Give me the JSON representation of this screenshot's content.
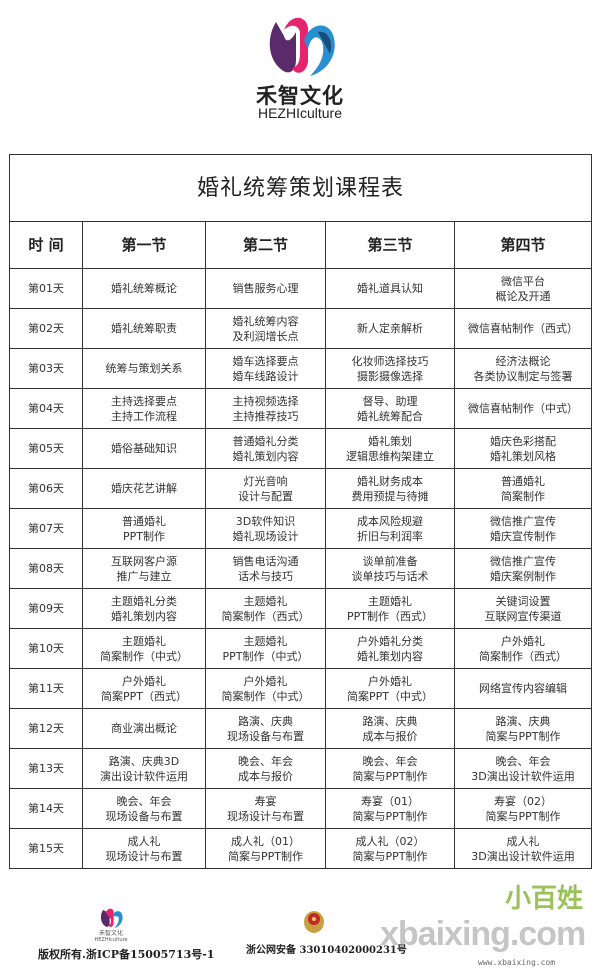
{
  "brand": {
    "name_cn": "禾智文化",
    "name_en": "HEZHIculture",
    "logo_colors": [
      "#e8236e",
      "#2a8fd0",
      "#5a2a6a"
    ]
  },
  "table": {
    "title": "婚礼统筹策划课程表",
    "headers": [
      "时 间",
      "第一节",
      "第二节",
      "第三节",
      "第四节"
    ],
    "rows": [
      {
        "day": "第01天",
        "cells": [
          [
            "婚礼统筹概论"
          ],
          [
            "销售服务心理"
          ],
          [
            "婚礼道具认知"
          ],
          [
            "微信平台",
            "概论及开通"
          ]
        ]
      },
      {
        "day": "第02天",
        "cells": [
          [
            "婚礼统筹职责"
          ],
          [
            "婚礼统筹内容",
            "及利润增长点"
          ],
          [
            "新人定亲解析"
          ],
          [
            "微信喜帖制作（西式）"
          ]
        ]
      },
      {
        "day": "第03天",
        "cells": [
          [
            "统筹与策划关系"
          ],
          [
            "婚车选择要点",
            "婚车线路设计"
          ],
          [
            "化妆师选择技巧",
            "摄影摄像选择"
          ],
          [
            "经济法概论",
            "各类协议制定与签署"
          ]
        ]
      },
      {
        "day": "第04天",
        "cells": [
          [
            "主持选择要点",
            "主持工作流程"
          ],
          [
            "主持视频选择",
            "主持推荐技巧"
          ],
          [
            "督导、助理",
            "婚礼统筹配合"
          ],
          [
            "微信喜帖制作（中式）"
          ]
        ]
      },
      {
        "day": "第05天",
        "cells": [
          [
            "婚俗基础知识"
          ],
          [
            "普通婚礼分类",
            "婚礼策划内容"
          ],
          [
            "婚礼策划",
            "逻辑思维构架建立"
          ],
          [
            "婚庆色彩搭配",
            "婚礼策划风格"
          ]
        ]
      },
      {
        "day": "第06天",
        "cells": [
          [
            "婚庆花艺讲解"
          ],
          [
            "灯光音响",
            "设计与配置"
          ],
          [
            "婚礼财务成本",
            "费用预提与待摊"
          ],
          [
            "普通婚礼",
            "简案制作"
          ]
        ]
      },
      {
        "day": "第07天",
        "cells": [
          [
            "普通婚礼",
            "PPT制作"
          ],
          [
            "3D软件知识",
            "婚礼现场设计"
          ],
          [
            "成本风险规避",
            "折旧与利润率"
          ],
          [
            "微信推广宣传",
            "婚庆宣传制作"
          ]
        ]
      },
      {
        "day": "第08天",
        "cells": [
          [
            "互联网客户源",
            "推广与建立"
          ],
          [
            "销售电话沟通",
            "话术与技巧"
          ],
          [
            "谈单前准备",
            "谈单技巧与话术"
          ],
          [
            "微信推广宣传",
            "婚庆案例制作"
          ]
        ]
      },
      {
        "day": "第09天",
        "cells": [
          [
            "主题婚礼分类",
            "婚礼策划内容"
          ],
          [
            "主题婚礼",
            "简案制作（西式）"
          ],
          [
            "主题婚礼",
            "PPT制作（西式）"
          ],
          [
            "关键词设置",
            "互联网宣传渠道"
          ]
        ]
      },
      {
        "day": "第10天",
        "cells": [
          [
            "主题婚礼",
            "简案制作（中式）"
          ],
          [
            "主题婚礼",
            "PPT制作（中式）"
          ],
          [
            "户外婚礼分类",
            "婚礼策划内容"
          ],
          [
            "户外婚礼",
            "简案制作（西式）"
          ]
        ]
      },
      {
        "day": "第11天",
        "cells": [
          [
            "户外婚礼",
            "简案PPT（西式）"
          ],
          [
            "户外婚礼",
            "简案制作（中式）"
          ],
          [
            "户外婚礼",
            "简案PPT（中式）"
          ],
          [
            "网络宣传内容编辑"
          ]
        ]
      },
      {
        "day": "第12天",
        "cells": [
          [
            "商业演出概论"
          ],
          [
            "路演、庆典",
            "现场设备与布置"
          ],
          [
            "路演、庆典",
            "成本与报价"
          ],
          [
            "路演、庆典",
            "简案与PPT制作"
          ]
        ]
      },
      {
        "day": "第13天",
        "cells": [
          [
            "路演、庆典3D",
            "演出设计软件运用"
          ],
          [
            "晚会、年会",
            "成本与报价"
          ],
          [
            "晚会、年会",
            "简案与PPT制作"
          ],
          [
            "晚会、年会",
            "3D演出设计软件运用"
          ]
        ]
      },
      {
        "day": "第14天",
        "cells": [
          [
            "晚会、年会",
            "现场设备与布置"
          ],
          [
            "寿宴",
            "现场设计与布置"
          ],
          [
            "寿宴（01）",
            "简案与PPT制作"
          ],
          [
            "寿宴（02）",
            "简案与PPT制作"
          ]
        ]
      },
      {
        "day": "第15天",
        "cells": [
          [
            "成人礼",
            "现场设计与布置"
          ],
          [
            "成人礼（01）",
            "简案与PPT制作"
          ],
          [
            "成人礼（02）",
            "简案与PPT制作"
          ],
          [
            "成人礼",
            "3D演出设计软件运用"
          ]
        ]
      }
    ]
  },
  "footer": {
    "logo_cn": "禾智文化",
    "logo_en": "HEZHIculture",
    "copyright": "版权所有.浙ICP备15005713号-1",
    "police": "浙公网安备 33010402000231号",
    "emblem_icon": "police-emblem-icon"
  },
  "watermark": {
    "text": "xbaixing.com",
    "url": "www.xbaixing.com",
    "mascot": "小百姓"
  }
}
